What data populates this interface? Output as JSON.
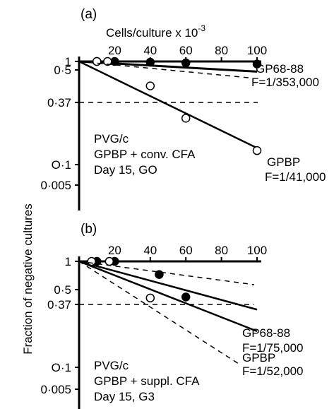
{
  "figure": {
    "ylabel": "Fraction of negative cultures"
  },
  "chart_data": [
    {
      "panel_label": "(a)",
      "type": "scatter",
      "xlabel": "Cells/culture x 10",
      "xlabel_exp": "-3",
      "xlim": [
        0,
        100
      ],
      "xticks": [
        "20",
        "40",
        "60",
        "80",
        "100"
      ],
      "y_scale": "log",
      "yticks": [
        "1",
        "0.5",
        "0.37",
        "0.1",
        "0.005"
      ],
      "reference_line": {
        "y": 0.37,
        "style": "dashed"
      },
      "annotation_lines": [
        "PVG/c",
        "GPBP + conv. CFA",
        "Day 15, GO"
      ],
      "series": [
        {
          "name": "GP68-88",
          "frequency": "F=1/353,000",
          "marker": "filled",
          "points": [
            {
              "x": 10,
              "y": 1.0
            },
            {
              "x": 20,
              "y": 1.0
            },
            {
              "x": 40,
              "y": 0.98
            },
            {
              "x": 60,
              "y": 0.96
            },
            {
              "x": 100,
              "y": 0.93
            }
          ],
          "fit_endpoint": {
            "x": 100,
            "y": 0.75
          }
        },
        {
          "name": "GPBP",
          "frequency": "F=1/41,000",
          "marker": "open",
          "points": [
            {
              "x": 10,
              "y": 1.0
            },
            {
              "x": 16,
              "y": 1.0
            },
            {
              "x": 40,
              "y": 0.5
            },
            {
              "x": 60,
              "y": 0.2
            },
            {
              "x": 100,
              "y": 0.08
            }
          ],
          "fit_endpoint": {
            "x": 100,
            "y": 0.086
          }
        }
      ]
    },
    {
      "panel_label": "(b)",
      "type": "scatter",
      "xlim": [
        0,
        100
      ],
      "xticks": [
        "20",
        "40",
        "60",
        "80",
        "100"
      ],
      "y_scale": "log",
      "yticks": [
        "1",
        "0.5",
        "0.37",
        "0.1",
        "0.005"
      ],
      "reference_line": {
        "y": 0.37,
        "style": "dashed"
      },
      "annotation_lines": [
        "PVG/c",
        "GPBP + suppl. CFA",
        "Day 15, G3"
      ],
      "series": [
        {
          "name": "GP68-88",
          "frequency": "F=1/75,000",
          "marker": "filled",
          "points": [
            {
              "x": 10,
              "y": 1.0
            },
            {
              "x": 20,
              "y": 1.0
            },
            {
              "x": 45,
              "y": 0.7
            },
            {
              "x": 60,
              "y": 0.38
            }
          ],
          "fit_endpoint": {
            "x": 100,
            "y": 0.27
          }
        },
        {
          "name": "GPBP",
          "frequency": "F=1/52,000",
          "marker": "open",
          "points": [
            {
              "x": 7,
              "y": 1.0
            },
            {
              "x": 17,
              "y": 1.0
            },
            {
              "x": 40,
              "y": 0.37
            }
          ],
          "fit_endpoint": {
            "x": 100,
            "y": 0.15
          }
        }
      ]
    }
  ]
}
